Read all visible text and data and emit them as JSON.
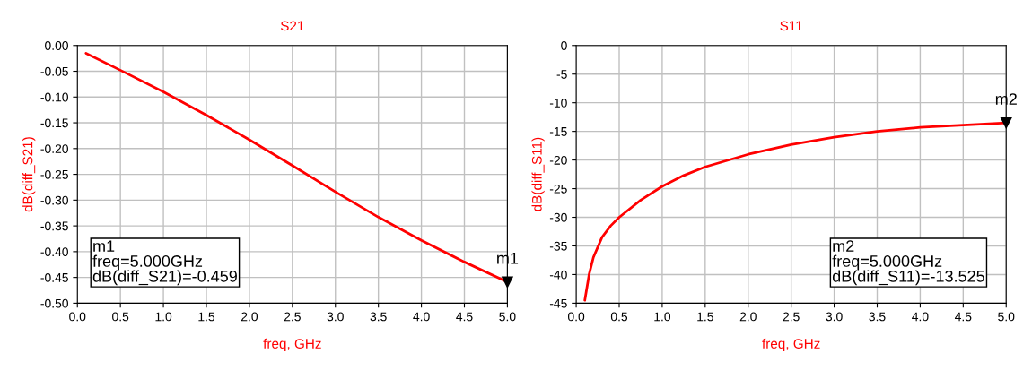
{
  "chart_data": [
    {
      "type": "line",
      "title": "S21",
      "xlabel": "freq, GHz",
      "ylabel": "dB(diff_S21)",
      "x": [
        0.1,
        0.5,
        1.0,
        1.5,
        2.0,
        2.5,
        3.0,
        3.5,
        4.0,
        4.5,
        5.0
      ],
      "series": [
        {
          "color": "#ff0000",
          "values": [
            -0.015,
            -0.048,
            -0.09,
            -0.135,
            -0.183,
            -0.233,
            -0.284,
            -0.333,
            -0.378,
            -0.42,
            -0.459
          ]
        }
      ],
      "xlim": [
        0,
        5
      ],
      "xticks": [
        {
          "value": 0,
          "label": "0.0"
        },
        0.5,
        {
          "value": 1,
          "label": "1.0"
        },
        1.5,
        {
          "value": 2,
          "label": "2.0"
        },
        2.5,
        {
          "value": 3,
          "label": "3.0"
        },
        3.5,
        {
          "value": 4,
          "label": "4.0"
        },
        4.5,
        {
          "value": 5,
          "label": "5.0"
        }
      ],
      "ylim": [
        -0.5,
        0
      ],
      "yticks": [
        {
          "value": -0.5,
          "label": "-0.50"
        },
        {
          "value": -0.45,
          "label": "-0.45"
        },
        {
          "value": -0.4,
          "label": "-0.40"
        },
        {
          "value": -0.35,
          "label": "-0.35"
        },
        {
          "value": -0.3,
          "label": "-0.30"
        },
        {
          "value": -0.25,
          "label": "-0.25"
        },
        {
          "value": -0.2,
          "label": "-0.20"
        },
        {
          "value": -0.15,
          "label": "-0.15"
        },
        {
          "value": -0.1,
          "label": "-0.10"
        },
        {
          "value": -0.05,
          "label": "-0.05"
        },
        {
          "value": 0,
          "label": "0.00"
        }
      ],
      "grid": true,
      "annotations": [
        {
          "text": "m1",
          "x": 5.0,
          "y": -0.459
        },
        "m1\nfreq=5.000GHz\ndB(diff_S21)=-0.459"
      ]
    },
    {
      "type": "line",
      "title": "S11",
      "xlabel": "freq, GHz",
      "ylabel": "dB(diff_S11)",
      "x": [
        0.1,
        0.15,
        0.2,
        0.3,
        0.4,
        0.5,
        0.75,
        1.0,
        1.25,
        1.5,
        2.0,
        2.5,
        3.0,
        3.5,
        4.0,
        4.5,
        5.0
      ],
      "series": [
        {
          "color": "#ff0000",
          "values": [
            -44.5,
            -40.0,
            -37.0,
            -33.5,
            -31.5,
            -30.0,
            -27.0,
            -24.6,
            -22.7,
            -21.2,
            -19.0,
            -17.3,
            -16.0,
            -15.0,
            -14.3,
            -13.9,
            -13.525
          ]
        }
      ],
      "xlim": [
        0,
        5
      ],
      "xticks": [
        {
          "value": 0,
          "label": "0.0"
        },
        0.5,
        {
          "value": 1,
          "label": "1.0"
        },
        1.5,
        {
          "value": 2,
          "label": "2.0"
        },
        2.5,
        {
          "value": 3,
          "label": "3.0"
        },
        3.5,
        {
          "value": 4,
          "label": "4.0"
        },
        4.5,
        {
          "value": 5,
          "label": "5.0"
        }
      ],
      "ylim": [
        -45,
        0
      ],
      "yticks": [
        -45,
        -40,
        -35,
        -30,
        -25,
        -20,
        -15,
        -10,
        -5,
        0
      ],
      "grid": true,
      "annotations": [
        {
          "text": "m2",
          "x": 5.0,
          "y": -13.525
        },
        "m2\nfreq=5.000GHz\ndB(diff_S11)=-13.525"
      ]
    }
  ]
}
